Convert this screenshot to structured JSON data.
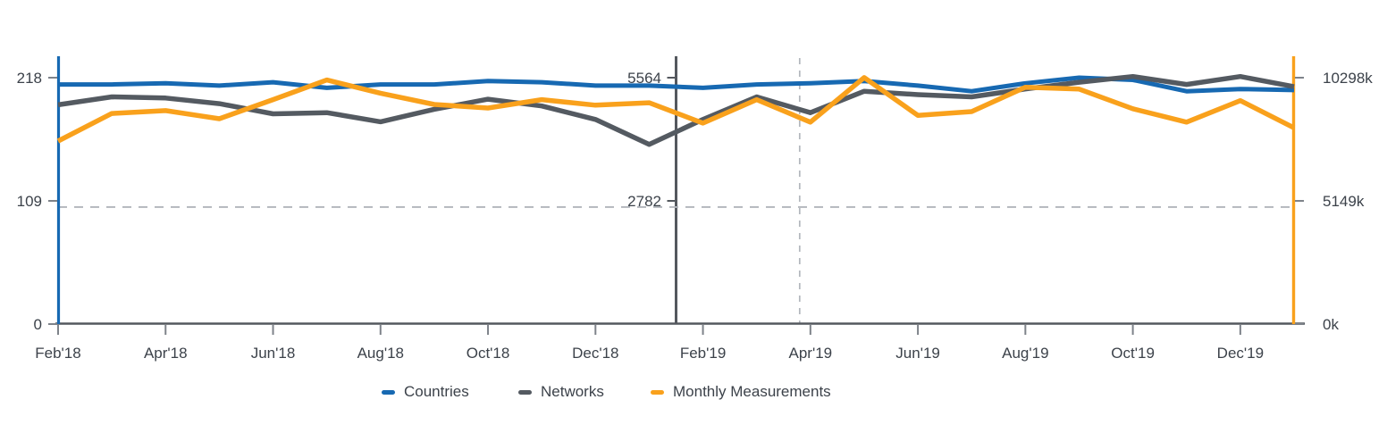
{
  "chart_data": {
    "type": "line",
    "x": [
      "Feb'18",
      "Mar'18",
      "Apr'18",
      "May'18",
      "Jun'18",
      "Jul'18",
      "Aug'18",
      "Sep'18",
      "Oct'18",
      "Nov'18",
      "Dec'18",
      "Jan'19",
      "Feb'19",
      "Mar'19",
      "Apr'19",
      "May'19",
      "Jun'19",
      "Jul'19",
      "Aug'19",
      "Sep'19",
      "Oct'19",
      "Nov'19",
      "Dec'19",
      "Jan'20"
    ],
    "x_axis_tick_labels": [
      "Feb'18",
      "Apr'18",
      "Jun'18",
      "Aug'18",
      "Oct'18",
      "Dec'18",
      "Feb'19",
      "Apr'19",
      "Jun'19",
      "Aug'19",
      "Oct'19",
      "Dec'19"
    ],
    "left_axis": {
      "tick_labels": [
        "218",
        "109",
        "0"
      ],
      "tick_values": [
        218,
        109,
        0
      ],
      "max": 218,
      "color": "#1769b2"
    },
    "right_axis": {
      "tick_labels": [
        "10298k",
        "5149k",
        "0k"
      ],
      "tick_values": [
        10298,
        5149,
        0
      ],
      "max": 10298,
      "color": "#f9a11c"
    },
    "inner_axis": {
      "tick_labels": [
        "5564",
        "2782"
      ],
      "tick_values": [
        5564,
        2782
      ],
      "max": 5564,
      "x_month_index": 11.5,
      "color": "#54585e"
    },
    "series": [
      {
        "name": "Countries",
        "axis": "left",
        "color": "#1769b2",
        "stroke_width": 5,
        "values": [
          212,
          212,
          213,
          211,
          214,
          209,
          212,
          212,
          215,
          214,
          211,
          211,
          209,
          212,
          213,
          215,
          211,
          206,
          213,
          218,
          216,
          206,
          208,
          207
        ]
      },
      {
        "name": "Networks",
        "axis": "left",
        "color": "#545a61",
        "stroke_width": 5.5,
        "values": [
          194,
          201,
          200,
          195,
          186,
          187,
          179,
          190,
          199,
          193,
          181,
          159,
          181,
          201,
          187,
          206,
          203,
          201,
          208,
          214,
          219,
          212,
          219,
          210
        ]
      },
      {
        "name": "Monthly Measurements",
        "axis": "right",
        "color": "#f9a11c",
        "stroke_width": 5.5,
        "values": [
          7650,
          8800,
          8920,
          8580,
          9380,
          10200,
          9650,
          9180,
          9030,
          9380,
          9150,
          9250,
          8400,
          9380,
          8440,
          10300,
          8720,
          8880,
          9900,
          9820,
          9000,
          8440,
          9340,
          8200
        ]
      }
    ],
    "reference_lines": {
      "vertical_solid": {
        "x_month_index": 11.5,
        "style": "solid",
        "color": "#54585e"
      },
      "vertical_dashed": {
        "x_month_index": 13.8,
        "style": "dashed",
        "color": "#b2b6bc"
      },
      "horizontal_dashed": {
        "value_left_axis": 103.5,
        "style": "dashed",
        "color": "#b2b6bc"
      }
    },
    "legend": {
      "position": "bottom",
      "items": [
        "Countries",
        "Networks",
        "Monthly Measurements"
      ]
    },
    "text_color": "#3c424a",
    "axis_line_color": "#54585e",
    "tick_color": "#7e838a",
    "font_size": 17
  }
}
